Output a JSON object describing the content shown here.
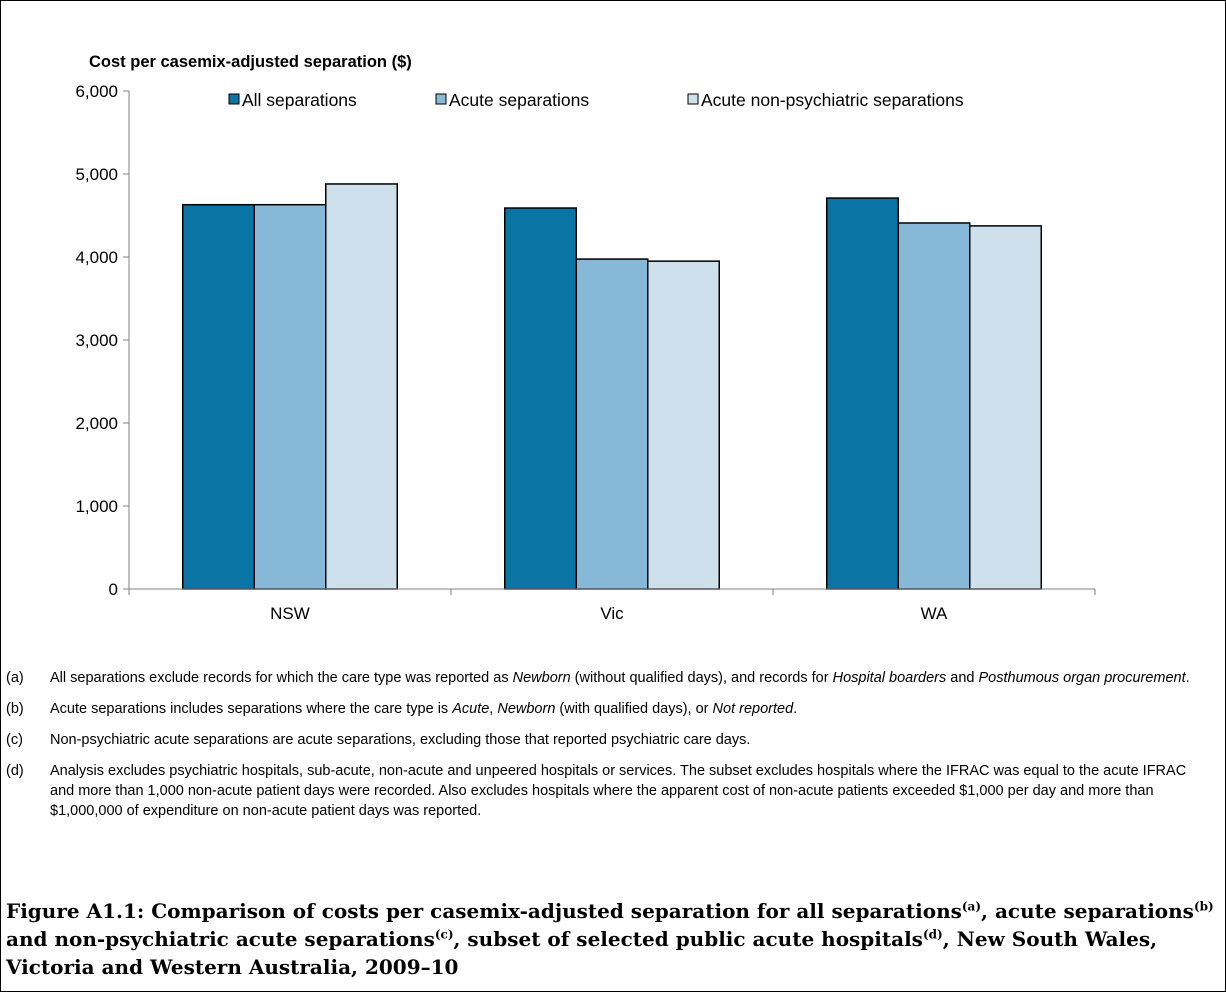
{
  "chart_data": {
    "type": "bar",
    "title": "Cost per casemix-adjusted separation ($)",
    "categories": [
      "NSW",
      "Vic",
      "WA"
    ],
    "series": [
      {
        "name": "All separations",
        "color": "#0a75a5",
        "values": [
          4630,
          4590,
          4710
        ]
      },
      {
        "name": "Acute separations",
        "color": "#88b8d7",
        "values": [
          4630,
          3975,
          4410
        ]
      },
      {
        "name": "Acute non-psychiatric separations",
        "color": "#cde0ec",
        "values": [
          4880,
          3950,
          4375
        ]
      }
    ],
    "ylim": [
      0,
      6000
    ],
    "yticks": [
      0,
      1000,
      2000,
      3000,
      4000,
      5000,
      6000
    ],
    "ytick_labels": [
      "0",
      "1,000",
      "2,000",
      "3,000",
      "4,000",
      "5,000",
      "6,000"
    ],
    "grid": false,
    "legend_position": "top"
  },
  "notes": [
    {
      "label": "(a)",
      "parts": [
        {
          "t": "All separations exclude records for which the care type was reported as "
        },
        {
          "t": "Newborn",
          "i": true
        },
        {
          "t": " (without qualified days), and records for "
        },
        {
          "t": "Hospital boarders",
          "i": true
        },
        {
          "t": " and "
        },
        {
          "t": "Posthumous organ procurement",
          "i": true
        },
        {
          "t": "."
        }
      ]
    },
    {
      "label": "(b)",
      "parts": [
        {
          "t": "Acute separations includes separations where the care type is "
        },
        {
          "t": "Acute",
          "i": true
        },
        {
          "t": ", "
        },
        {
          "t": "Newborn",
          "i": true
        },
        {
          "t": " (with qualified days), or "
        },
        {
          "t": "Not reported",
          "i": true
        },
        {
          "t": "."
        }
      ]
    },
    {
      "label": "(c)",
      "parts": [
        {
          "t": "Non-psychiatric acute separations are acute separations, excluding those that reported psychiatric care days."
        }
      ]
    },
    {
      "label": "(d)",
      "parts": [
        {
          "t": "Analysis excludes psychiatric hospitals, sub-acute, non-acute and unpeered hospitals or services. The subset excludes hospitals where the IFRAC was equal to the acute IFRAC and more than 1,000 non-acute patient days were recorded. Also excludes hospitals where the apparent cost of non-acute patients exceeded $1,000 per day and more than $1,000,000 of expenditure on non-acute patient days was reported."
        }
      ]
    }
  ],
  "caption": [
    {
      "t": "Figure A1.1: Comparison of costs per casemix-adjusted separation for all separations"
    },
    {
      "t": "(a)",
      "sup": true
    },
    {
      "t": ", acute separations"
    },
    {
      "t": "(b)",
      "sup": true
    },
    {
      "t": " and non-psychiatric acute separations"
    },
    {
      "t": "(c)",
      "sup": true
    },
    {
      "t": ", subset of selected public acute hospitals"
    },
    {
      "t": "(d)",
      "sup": true
    },
    {
      "t": ", New South Wales, Victoria and Western Australia, 2009–10"
    }
  ]
}
